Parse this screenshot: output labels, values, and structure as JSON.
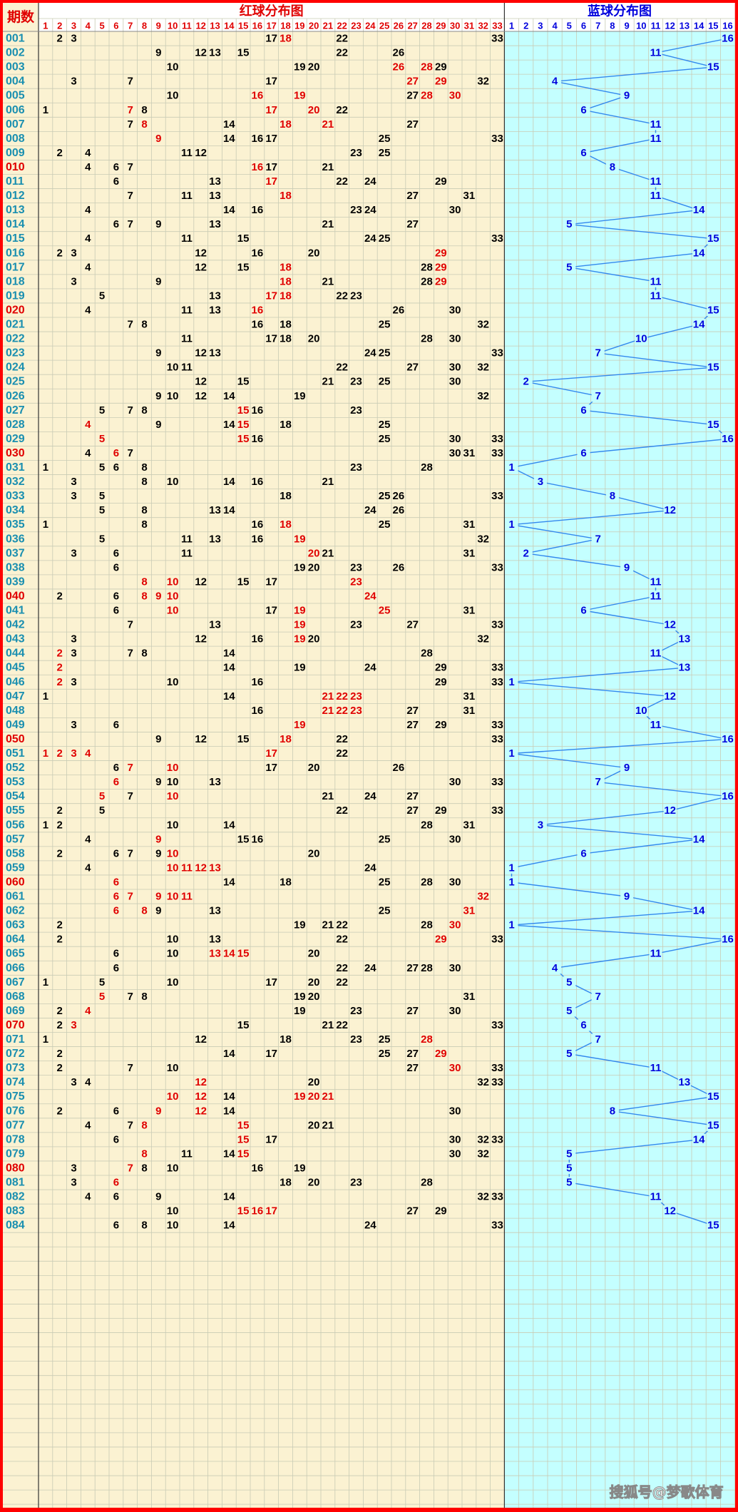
{
  "chart_data": {
    "type": "table",
    "header": {
      "period_label": "期数",
      "red_title": "红球分布图",
      "blue_title": "蓝球分布图"
    },
    "red_numbers": [
      "1",
      "2",
      "3",
      "4",
      "5",
      "6",
      "7",
      "8",
      "9",
      "10",
      "11",
      "12",
      "13",
      "14",
      "15",
      "16",
      "17",
      "18",
      "19",
      "20",
      "21",
      "22",
      "23",
      "24",
      "25",
      "26",
      "27",
      "28",
      "29",
      "30",
      "31",
      "32",
      "33"
    ],
    "blue_numbers": [
      "1",
      "2",
      "3",
      "4",
      "5",
      "6",
      "7",
      "8",
      "9",
      "10",
      "11",
      "12",
      "13",
      "14",
      "15",
      "16"
    ],
    "colors": {
      "border": "#ff0000",
      "red_bg": "#fbf2d2",
      "blue_bg": "#c4ffff",
      "grid": "#c9cbb5",
      "red_text": "#e00000",
      "black_text": "#000000",
      "blue_text": "#0000dd",
      "blue_line": "#3388ee",
      "period_blue": "#1a8fb0",
      "period_red": "#e00000"
    },
    "rows": [
      {
        "period": "001",
        "red": [
          2,
          3,
          17,
          18,
          22,
          33
        ],
        "hot": [
          18
        ],
        "blue": 16
      },
      {
        "period": "002",
        "red": [
          9,
          12,
          13,
          15,
          22,
          26
        ],
        "hot": [],
        "blue": 11
      },
      {
        "period": "003",
        "red": [
          10,
          19,
          20,
          26,
          28,
          29
        ],
        "hot": [
          26,
          28
        ],
        "blue": 15
      },
      {
        "period": "004",
        "red": [
          3,
          7,
          17,
          27,
          29,
          32
        ],
        "hot": [
          27,
          29
        ],
        "blue": 4
      },
      {
        "period": "005",
        "red": [
          10,
          16,
          19,
          27,
          28,
          30
        ],
        "hot": [
          16,
          19,
          28,
          30
        ],
        "blue": 9
      },
      {
        "period": "006",
        "red": [
          1,
          7,
          8,
          17,
          20,
          22
        ],
        "hot": [
          7,
          17,
          20
        ],
        "blue": 6
      },
      {
        "period": "007",
        "red": [
          7,
          8,
          14,
          18,
          21,
          27
        ],
        "hot": [
          8,
          18,
          21
        ],
        "blue": 11
      },
      {
        "period": "008",
        "red": [
          9,
          14,
          16,
          17,
          25,
          33
        ],
        "hot": [
          9
        ],
        "blue": 11
      },
      {
        "period": "009",
        "red": [
          2,
          4,
          11,
          12,
          23,
          25
        ],
        "hot": [],
        "blue": 6
      },
      {
        "period": "010",
        "red": [
          4,
          6,
          7,
          16,
          17,
          21
        ],
        "hot": [
          16
        ],
        "blue": 8
      },
      {
        "period": "011",
        "red": [
          6,
          13,
          17,
          22,
          24,
          29
        ],
        "hot": [
          17
        ],
        "blue": 11
      },
      {
        "period": "012",
        "red": [
          7,
          11,
          13,
          18,
          27,
          31
        ],
        "hot": [
          18
        ],
        "blue": 11
      },
      {
        "period": "013",
        "red": [
          4,
          14,
          16,
          23,
          24,
          30
        ],
        "hot": [],
        "blue": 14
      },
      {
        "period": "014",
        "red": [
          6,
          7,
          9,
          13,
          21,
          27
        ],
        "hot": [],
        "blue": 5
      },
      {
        "period": "015",
        "red": [
          4,
          11,
          15,
          24,
          25,
          33
        ],
        "hot": [],
        "blue": 15
      },
      {
        "period": "016",
        "red": [
          2,
          3,
          12,
          16,
          20,
          29
        ],
        "hot": [
          29
        ],
        "blue": 14
      },
      {
        "period": "017",
        "red": [
          4,
          12,
          15,
          18,
          28,
          29
        ],
        "hot": [
          18,
          29
        ],
        "blue": 5
      },
      {
        "period": "018",
        "red": [
          3,
          9,
          18,
          21,
          28,
          29
        ],
        "hot": [
          18,
          29
        ],
        "blue": 11
      },
      {
        "period": "019",
        "red": [
          5,
          13,
          17,
          18,
          22,
          23
        ],
        "hot": [
          17,
          18
        ],
        "blue": 11
      },
      {
        "period": "020",
        "red": [
          4,
          11,
          13,
          16,
          26,
          30
        ],
        "hot": [
          16
        ],
        "blue": 15
      },
      {
        "period": "021",
        "red": [
          7,
          8,
          16,
          18,
          25,
          32
        ],
        "hot": [],
        "blue": 14
      },
      {
        "period": "022",
        "red": [
          11,
          17,
          18,
          20,
          28,
          30
        ],
        "hot": [],
        "blue": 10
      },
      {
        "period": "023",
        "red": [
          9,
          12,
          13,
          24,
          25,
          33
        ],
        "hot": [],
        "blue": 7
      },
      {
        "period": "024",
        "red": [
          10,
          11,
          22,
          27,
          30,
          32
        ],
        "hot": [],
        "blue": 15
      },
      {
        "period": "025",
        "red": [
          12,
          15,
          21,
          23,
          25,
          30
        ],
        "hot": [],
        "blue": 2
      },
      {
        "period": "026",
        "red": [
          9,
          10,
          12,
          14,
          19,
          32
        ],
        "hot": [],
        "blue": 7
      },
      {
        "period": "027",
        "red": [
          5,
          7,
          8,
          15,
          16,
          23
        ],
        "hot": [
          15
        ],
        "blue": 6
      },
      {
        "period": "028",
        "red": [
          4,
          9,
          14,
          15,
          18,
          25
        ],
        "hot": [
          4,
          15
        ],
        "blue": 15
      },
      {
        "period": "029",
        "red": [
          5,
          15,
          16,
          25,
          30,
          33
        ],
        "hot": [
          5,
          15
        ],
        "blue": 16
      },
      {
        "period": "030",
        "red": [
          4,
          6,
          7,
          30,
          31,
          33
        ],
        "hot": [
          6
        ],
        "blue": 6
      },
      {
        "period": "031",
        "red": [
          1,
          5,
          6,
          8,
          23,
          28
        ],
        "hot": [],
        "blue": 1
      },
      {
        "period": "032",
        "red": [
          3,
          8,
          10,
          14,
          16,
          21
        ],
        "hot": [],
        "blue": 3
      },
      {
        "period": "033",
        "red": [
          3,
          5,
          18,
          25,
          26,
          33
        ],
        "hot": [],
        "blue": 8
      },
      {
        "period": "034",
        "red": [
          5,
          8,
          13,
          14,
          24,
          26
        ],
        "hot": [],
        "blue": 12
      },
      {
        "period": "035",
        "red": [
          1,
          8,
          16,
          18,
          25,
          31
        ],
        "hot": [
          18
        ],
        "blue": 1
      },
      {
        "period": "036",
        "red": [
          5,
          11,
          13,
          16,
          19,
          32
        ],
        "hot": [
          19
        ],
        "blue": 7
      },
      {
        "period": "037",
        "red": [
          3,
          6,
          11,
          20,
          21,
          31
        ],
        "hot": [
          20
        ],
        "blue": 2
      },
      {
        "period": "038",
        "red": [
          6,
          19,
          20,
          23,
          26,
          33
        ],
        "hot": [],
        "blue": 9
      },
      {
        "period": "039",
        "red": [
          8,
          10,
          12,
          15,
          17,
          23
        ],
        "hot": [
          8,
          10,
          23
        ],
        "blue": 11
      },
      {
        "period": "040",
        "red": [
          2,
          6,
          8,
          9,
          10,
          24
        ],
        "hot": [
          8,
          9,
          10,
          24
        ],
        "blue": 11
      },
      {
        "period": "041",
        "red": [
          6,
          10,
          17,
          19,
          25,
          31
        ],
        "hot": [
          10,
          19,
          25
        ],
        "blue": 6
      },
      {
        "period": "042",
        "red": [
          7,
          13,
          19,
          23,
          27,
          33
        ],
        "hot": [
          19
        ],
        "blue": 12
      },
      {
        "period": "043",
        "red": [
          3,
          12,
          16,
          19,
          20,
          32
        ],
        "hot": [
          19
        ],
        "blue": 13
      },
      {
        "period": "044",
        "red": [
          2,
          3,
          7,
          8,
          14,
          28
        ],
        "hot": [
          2
        ],
        "blue": 11
      },
      {
        "period": "045",
        "red": [
          2,
          14,
          19,
          24,
          29,
          33
        ],
        "hot": [
          2
        ],
        "blue": 13
      },
      {
        "period": "046",
        "red": [
          2,
          3,
          10,
          16,
          29,
          33
        ],
        "hot": [
          2
        ],
        "blue": 1
      },
      {
        "period": "047",
        "red": [
          1,
          14,
          21,
          22,
          23,
          31
        ],
        "hot": [
          21,
          22,
          23
        ],
        "blue": 12
      },
      {
        "period": "048",
        "red": [
          16,
          21,
          22,
          23,
          27,
          31
        ],
        "hot": [
          21,
          22,
          23
        ],
        "blue": 10
      },
      {
        "period": "049",
        "red": [
          3,
          6,
          19,
          27,
          29,
          33
        ],
        "hot": [
          19
        ],
        "blue": 11
      },
      {
        "period": "050",
        "red": [
          9,
          12,
          15,
          18,
          22,
          33
        ],
        "hot": [
          18
        ],
        "blue": 16
      },
      {
        "period": "051",
        "red": [
          1,
          2,
          3,
          4,
          17,
          22
        ],
        "hot": [
          1,
          2,
          3,
          4,
          17
        ],
        "blue": 1
      },
      {
        "period": "052",
        "red": [
          6,
          7,
          10,
          17,
          20,
          26
        ],
        "hot": [
          7,
          10
        ],
        "blue": 9
      },
      {
        "period": "053",
        "red": [
          6,
          9,
          10,
          13,
          30,
          33
        ],
        "hot": [
          6
        ],
        "blue": 7
      },
      {
        "period": "054",
        "red": [
          5,
          7,
          10,
          21,
          24,
          27
        ],
        "hot": [
          5,
          10
        ],
        "blue": 16
      },
      {
        "period": "055",
        "red": [
          2,
          5,
          22,
          27,
          29,
          33
        ],
        "hot": [],
        "blue": 12
      },
      {
        "period": "056",
        "red": [
          1,
          2,
          10,
          14,
          28,
          31
        ],
        "hot": [],
        "blue": 3
      },
      {
        "period": "057",
        "red": [
          4,
          9,
          15,
          16,
          25,
          30
        ],
        "hot": [
          9
        ],
        "blue": 14
      },
      {
        "period": "058",
        "red": [
          2,
          6,
          7,
          9,
          10,
          20
        ],
        "hot": [
          10
        ],
        "blue": 6
      },
      {
        "period": "059",
        "red": [
          4,
          10,
          11,
          12,
          13,
          24
        ],
        "hot": [
          10,
          11,
          12,
          13
        ],
        "blue": 1
      },
      {
        "period": "060",
        "red": [
          6,
          14,
          18,
          25,
          28,
          30
        ],
        "hot": [
          6
        ],
        "blue": 1
      },
      {
        "period": "061",
        "red": [
          6,
          7,
          9,
          10,
          11,
          32
        ],
        "hot": [
          6,
          7,
          9,
          10,
          11,
          32
        ],
        "blue": 9
      },
      {
        "period": "062",
        "red": [
          6,
          8,
          9,
          13,
          25,
          31
        ],
        "hot": [
          6,
          8,
          31
        ],
        "blue": 14
      },
      {
        "period": "063",
        "red": [
          2,
          19,
          21,
          22,
          28,
          30
        ],
        "hot": [
          30
        ],
        "blue": 1
      },
      {
        "period": "064",
        "red": [
          2,
          10,
          13,
          22,
          29,
          33
        ],
        "hot": [
          29
        ],
        "blue": 16
      },
      {
        "period": "065",
        "red": [
          6,
          10,
          13,
          14,
          15,
          20
        ],
        "hot": [
          13,
          14,
          15
        ],
        "blue": 11
      },
      {
        "period": "066",
        "red": [
          6,
          22,
          24,
          27,
          28,
          30
        ],
        "hot": [],
        "blue": 4
      },
      {
        "period": "067",
        "red": [
          1,
          5,
          10,
          17,
          20,
          22
        ],
        "hot": [],
        "blue": 5
      },
      {
        "period": "068",
        "red": [
          5,
          7,
          8,
          19,
          20,
          31
        ],
        "hot": [
          5
        ],
        "blue": 7
      },
      {
        "period": "069",
        "red": [
          2,
          4,
          19,
          23,
          27,
          30
        ],
        "hot": [
          4
        ],
        "blue": 5
      },
      {
        "period": "070",
        "red": [
          2,
          3,
          15,
          21,
          22,
          33
        ],
        "hot": [
          3
        ],
        "blue": 6
      },
      {
        "period": "071",
        "red": [
          1,
          12,
          18,
          23,
          25,
          28
        ],
        "hot": [
          28
        ],
        "blue": 7
      },
      {
        "period": "072",
        "red": [
          2,
          14,
          17,
          25,
          27,
          29
        ],
        "hot": [
          29
        ],
        "blue": 5
      },
      {
        "period": "073",
        "red": [
          2,
          7,
          10,
          27,
          30,
          33
        ],
        "hot": [
          30
        ],
        "blue": 11
      },
      {
        "period": "074",
        "red": [
          3,
          4,
          12,
          20,
          32,
          33
        ],
        "hot": [
          12
        ],
        "blue": 13
      },
      {
        "period": "075",
        "red": [
          10,
          12,
          14,
          19,
          20,
          21
        ],
        "hot": [
          10,
          12,
          19,
          20,
          21
        ],
        "blue": 15
      },
      {
        "period": "076",
        "red": [
          2,
          6,
          9,
          12,
          14,
          30
        ],
        "hot": [
          9,
          12
        ],
        "blue": 8
      },
      {
        "period": "077",
        "red": [
          4,
          7,
          8,
          15,
          20,
          21
        ],
        "hot": [
          8,
          15
        ],
        "blue": 15
      },
      {
        "period": "078",
        "red": [
          6,
          15,
          17,
          30,
          32,
          33
        ],
        "hot": [
          15
        ],
        "blue": 14
      },
      {
        "period": "079",
        "red": [
          8,
          11,
          14,
          15,
          30,
          32
        ],
        "hot": [
          8,
          15
        ],
        "blue": 5
      },
      {
        "period": "080",
        "red": [
          3,
          7,
          8,
          10,
          16,
          19
        ],
        "hot": [
          7
        ],
        "blue": 5
      },
      {
        "period": "081",
        "red": [
          3,
          6,
          18,
          20,
          23,
          28
        ],
        "hot": [
          6
        ],
        "blue": 5
      },
      {
        "period": "082",
        "red": [
          4,
          6,
          9,
          14,
          32,
          33
        ],
        "hot": [],
        "blue": 11
      },
      {
        "period": "083",
        "red": [
          10,
          15,
          16,
          17,
          27,
          29
        ],
        "hot": [
          15,
          16,
          17
        ],
        "blue": 12
      },
      {
        "period": "084",
        "red": [
          6,
          8,
          10,
          14,
          24,
          33
        ],
        "hot": [],
        "blue": 15
      }
    ],
    "watermark": "搜狐号@梦歌体育"
  }
}
